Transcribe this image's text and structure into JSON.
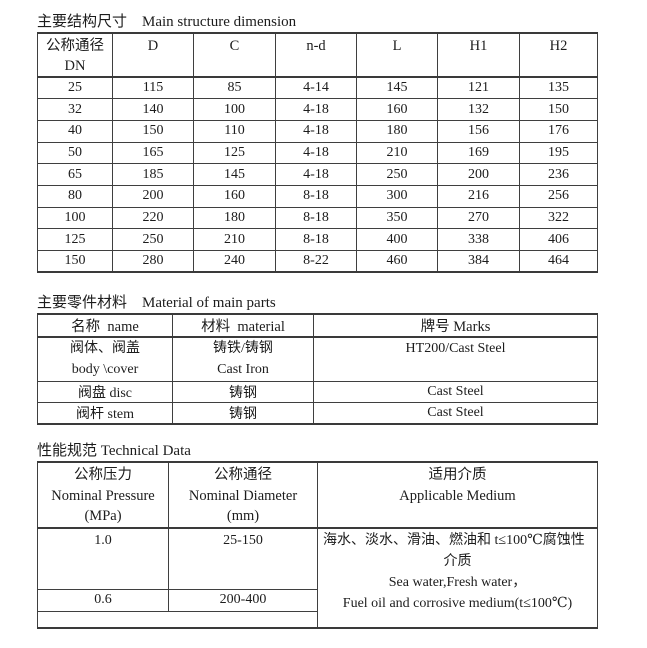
{
  "structure": {
    "title": "主要结构尺寸　Main structure dimension",
    "col1_header_line1": "公称通径",
    "col1_header_line2": "DN",
    "headers": [
      "D",
      "C",
      "n-d",
      "L",
      "H1",
      "H2"
    ],
    "rows": [
      [
        "25",
        "115",
        "85",
        "4-14",
        "145",
        "121",
        "135"
      ],
      [
        "32",
        "140",
        "100",
        "4-18",
        "160",
        "132",
        "150"
      ],
      [
        "40",
        "150",
        "110",
        "4-18",
        "180",
        "156",
        "176"
      ],
      [
        "50",
        "165",
        "125",
        "4-18",
        "210",
        "169",
        "195"
      ],
      [
        "65",
        "185",
        "145",
        "4-18",
        "250",
        "200",
        "236"
      ],
      [
        "80",
        "200",
        "160",
        "8-18",
        "300",
        "216",
        "256"
      ],
      [
        "100",
        "220",
        "180",
        "8-18",
        "350",
        "270",
        "322"
      ],
      [
        "125",
        "250",
        "210",
        "8-18",
        "400",
        "338",
        "406"
      ],
      [
        "150",
        "280",
        "240",
        "8-22",
        "460",
        "384",
        "464"
      ]
    ]
  },
  "materials": {
    "title": "主要零件材料　Material of main parts",
    "headers": {
      "name": "名称  name",
      "material": "材料  material",
      "marks": "牌号 Marks"
    },
    "row1": {
      "name_zh": "阀体、阀盖",
      "name_en": "body \\cover",
      "material_zh": "铸铁/铸钢",
      "material_en": "Cast Iron",
      "marks": "HT200/Cast Steel"
    },
    "row2": {
      "name": "阀盘 disc",
      "material": "铸钢",
      "marks": "Cast Steel"
    },
    "row3": {
      "name": "阀杆 stem",
      "material": "铸钢",
      "marks": "Cast Steel"
    }
  },
  "technical": {
    "title": "性能规范 Technical Data",
    "headers": {
      "pressure_zh": "公称压力",
      "pressure_en": "Nominal Pressure",
      "pressure_unit": "(MPa)",
      "diameter_zh": "公称通径",
      "diameter_en": "Nominal Diameter",
      "diameter_unit": "(mm)",
      "medium_zh": "适用介质",
      "medium_en": "Applicable Medium"
    },
    "row1": {
      "pressure": "1.0",
      "diameter": "25-150"
    },
    "row2": {
      "pressure": "0.6",
      "diameter": "200-400"
    },
    "medium_lines": [
      "海水、淡水、滑油、燃油和 t≤100℃腐蚀性",
      "介质",
      "Sea water,Fresh water，",
      "Fuel oil and corrosive medium(t≤100℃)"
    ]
  }
}
